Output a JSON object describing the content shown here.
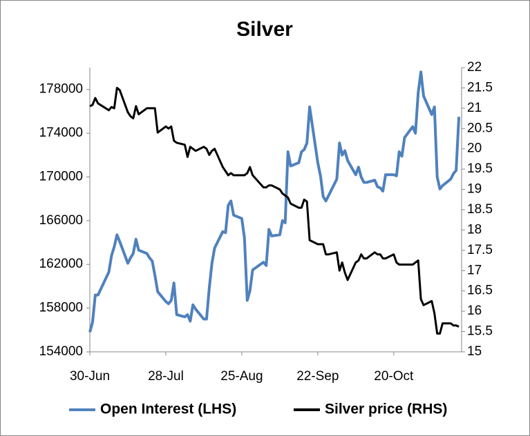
{
  "chart_data": {
    "type": "line",
    "title": "Silver",
    "x": [
      "30-Jun",
      "1-Jul",
      "2-Jul",
      "3-Jul",
      "7-Jul",
      "8-Jul",
      "9-Jul",
      "10-Jul",
      "11-Jul",
      "14-Jul",
      "15-Jul",
      "16-Jul",
      "17-Jul",
      "18-Jul",
      "21-Jul",
      "22-Jul",
      "23-Jul",
      "24-Jul",
      "25-Jul",
      "28-Jul",
      "29-Jul",
      "30-Jul",
      "31-Jul",
      "1-Aug",
      "4-Aug",
      "5-Aug",
      "6-Aug",
      "7-Aug",
      "8-Aug",
      "11-Aug",
      "12-Aug",
      "13-Aug",
      "14-Aug",
      "15-Aug",
      "18-Aug",
      "19-Aug",
      "20-Aug",
      "21-Aug",
      "22-Aug",
      "25-Aug",
      "26-Aug",
      "27-Aug",
      "28-Aug",
      "29-Aug",
      "2-Sep",
      "3-Sep",
      "4-Sep",
      "5-Sep",
      "8-Sep",
      "9-Sep",
      "10-Sep",
      "11-Sep",
      "12-Sep",
      "15-Sep",
      "16-Sep",
      "17-Sep",
      "18-Sep",
      "19-Sep",
      "22-Sep",
      "23-Sep",
      "24-Sep",
      "25-Sep",
      "26-Sep",
      "29-Sep",
      "30-Sep",
      "1-Oct",
      "2-Oct",
      "3-Oct",
      "6-Oct",
      "7-Oct",
      "8-Oct",
      "9-Oct",
      "10-Oct",
      "13-Oct",
      "14-Oct",
      "15-Oct",
      "16-Oct",
      "17-Oct",
      "20-Oct",
      "21-Oct",
      "22-Oct",
      "23-Oct",
      "24-Oct",
      "27-Oct",
      "28-Oct",
      "29-Oct",
      "30-Oct",
      "31-Oct",
      "3-Nov",
      "4-Nov",
      "5-Nov",
      "6-Nov",
      "7-Nov",
      "10-Nov",
      "11-Nov",
      "12-Nov",
      "13-Nov"
    ],
    "series": [
      {
        "name": "Open Interest (LHS)",
        "color": "#4f81bd",
        "axis": "y",
        "values": [
          155800,
          156700,
          159200,
          159200,
          161300,
          162800,
          163600,
          164700,
          164100,
          162100,
          162600,
          163000,
          164300,
          163300,
          163000,
          162600,
          162300,
          161000,
          159500,
          158600,
          158400,
          158700,
          160300,
          157400,
          157200,
          157400,
          156800,
          158300,
          157900,
          157000,
          157000,
          159800,
          162100,
          163500,
          165000,
          164900,
          167400,
          167800,
          166500,
          166200,
          164400,
          158700,
          159600,
          161500,
          162200,
          161900,
          165200,
          164600,
          164700,
          166000,
          165800,
          172300,
          171000,
          171300,
          172300,
          172500,
          173100,
          176400,
          171300,
          170100,
          168200,
          167800,
          168300,
          169800,
          173100,
          172000,
          172400,
          171500,
          170200,
          170900,
          170000,
          169500,
          169500,
          169700,
          169100,
          169000,
          168700,
          170200,
          170200,
          170100,
          172300,
          171900,
          173600,
          174600,
          174000,
          177700,
          179600,
          177400,
          175700,
          176400,
          170000,
          168900,
          169200,
          169800,
          170300,
          170600,
          175500
        ]
      },
      {
        "name": "Silver price (RHS)",
        "color": "#000000",
        "axis": "y2",
        "values": [
          21.05,
          21.08,
          21.25,
          21.12,
          20.95,
          21.03,
          21.0,
          21.5,
          21.45,
          20.9,
          20.8,
          20.75,
          21.05,
          20.85,
          21.0,
          21.0,
          21.0,
          21.0,
          20.4,
          20.55,
          20.5,
          20.55,
          20.2,
          20.15,
          20.1,
          19.8,
          20.05,
          20.0,
          19.95,
          20.05,
          20.0,
          19.85,
          19.95,
          20.0,
          19.55,
          19.45,
          19.35,
          19.4,
          19.35,
          19.35,
          19.35,
          19.4,
          19.55,
          19.35,
          19.05,
          19.05,
          19.1,
          19.1,
          19.0,
          18.9,
          18.85,
          18.8,
          18.65,
          18.55,
          18.55,
          18.75,
          18.7,
          17.75,
          17.65,
          17.65,
          17.65,
          17.4,
          17.4,
          17.45,
          17.0,
          17.2,
          16.95,
          16.77,
          17.2,
          17.25,
          17.4,
          17.3,
          17.3,
          17.45,
          17.4,
          17.4,
          17.3,
          17.3,
          17.4,
          17.2,
          17.15,
          17.15,
          17.15,
          17.15,
          17.2,
          17.25,
          16.3,
          16.15,
          16.25,
          15.95,
          15.45,
          15.45,
          15.7,
          15.7,
          15.65,
          15.65,
          15.62
        ]
      }
    ],
    "xlim": [
      "30-Jun",
      "14-Nov"
    ],
    "xticks": [
      "30-Jun",
      "28-Jul",
      "25-Aug",
      "22-Sep",
      "20-Oct"
    ],
    "ylim": [
      154000,
      180000
    ],
    "yticks": [
      154000,
      158000,
      162000,
      166000,
      170000,
      174000,
      178000
    ],
    "y2lim": [
      15,
      22
    ],
    "y2ticks": [
      15,
      15.5,
      16,
      16.5,
      17,
      17.5,
      18,
      18.5,
      19,
      19.5,
      20,
      20.5,
      21,
      21.5,
      22
    ],
    "legend": "bottom"
  }
}
